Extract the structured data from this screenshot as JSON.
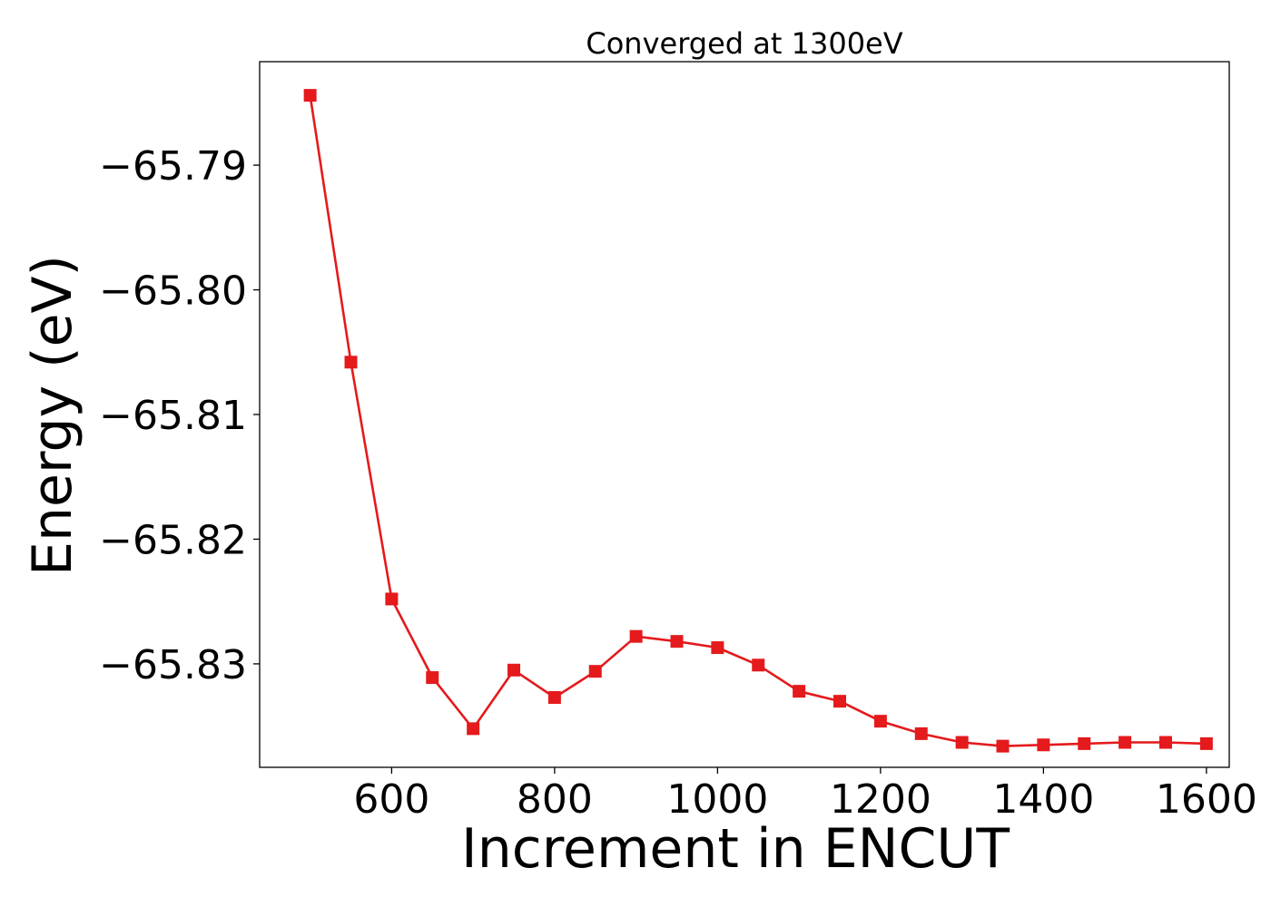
{
  "chart_data": {
    "type": "line",
    "title": "Converged at 1300eV",
    "xlabel": "Increment in ENCUT",
    "ylabel": "Energy (eV)",
    "x": [
      500,
      550,
      600,
      650,
      700,
      750,
      800,
      850,
      900,
      950,
      1000,
      1050,
      1100,
      1150,
      1200,
      1250,
      1300,
      1350,
      1400,
      1450,
      1500,
      1550,
      1600
    ],
    "series": [
      {
        "name": "",
        "marker": "square",
        "color": "#e41a1c",
        "values": [
          -65.7844,
          -65.8058,
          -65.8248,
          -65.8311,
          -65.8352,
          -65.8305,
          -65.8327,
          -65.8306,
          -65.8278,
          -65.8282,
          -65.8287,
          -65.8301,
          -65.8322,
          -65.833,
          -65.8346,
          -65.8356,
          -65.8363,
          -65.8366,
          -65.8365,
          -65.8364,
          -65.8363,
          -65.8363,
          -65.8364
        ]
      }
    ],
    "xlim": [
      438,
      1628
    ],
    "ylim": [
      -65.8383,
      -65.7817
    ],
    "xticks": [
      600,
      800,
      1000,
      1200,
      1400,
      1600
    ],
    "xtick_labels": [
      "600",
      "800",
      "1000",
      "1200",
      "1400",
      "1600"
    ],
    "yticks": [
      -65.79,
      -65.8,
      -65.81,
      -65.82,
      -65.83
    ],
    "ytick_labels": [
      "−65.79",
      "−65.80",
      "−65.81",
      "−65.82",
      "−65.83"
    ],
    "grid": false,
    "legend": "none"
  }
}
